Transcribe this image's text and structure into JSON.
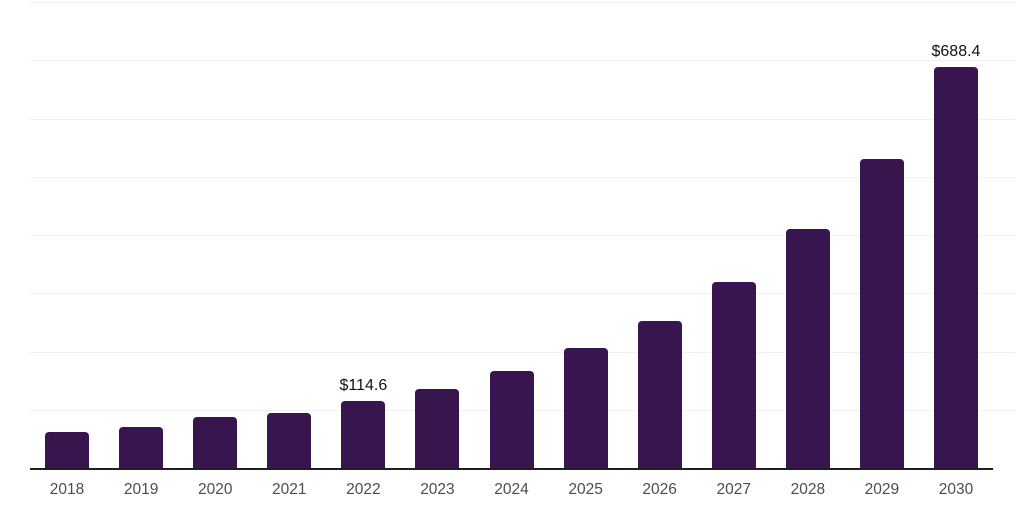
{
  "chart_data": {
    "type": "bar",
    "title": "",
    "xlabel": "",
    "ylabel": "",
    "categories": [
      "2018",
      "2019",
      "2020",
      "2021",
      "2022",
      "2023",
      "2024",
      "2025",
      "2026",
      "2027",
      "2028",
      "2029",
      "2030"
    ],
    "values": [
      62,
      71,
      88,
      95,
      114.6,
      135,
      166,
      206,
      253,
      320,
      410,
      530,
      688.4
    ],
    "data_labels": [
      {
        "category": "2022",
        "text": "$114.6"
      },
      {
        "category": "2030",
        "text": "$688.4"
      }
    ],
    "ylim": [
      0,
      800
    ],
    "grid": {
      "on": true,
      "interval": 100,
      "orientation": "horizontal"
    },
    "legend": {
      "visible": false
    },
    "y_axis_tick_labels_visible": false,
    "colors": {
      "bar": "#38154F",
      "gridline": "#f0f0f0",
      "axis_line": "#1f1f1f",
      "tick_label": "#4d4d4d",
      "value_label": "#111111",
      "background": "#ffffff"
    }
  }
}
